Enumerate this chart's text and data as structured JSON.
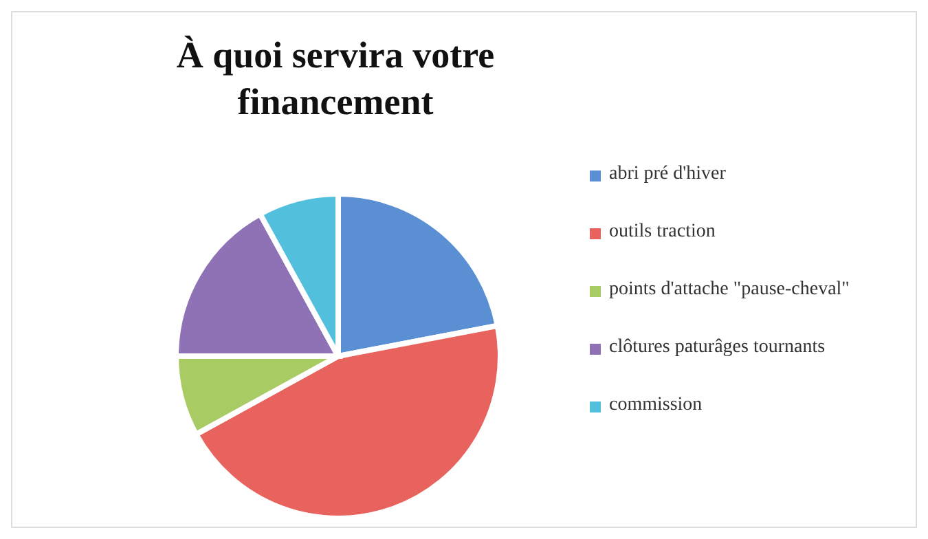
{
  "chart_data": {
    "type": "pie",
    "title": "À quoi servira votre financement",
    "categories": [
      "abri pré d'hiver",
      "outils traction",
      "points d'attache \"pause-cheval\"",
      "clôtures paturâges tournants",
      "commission"
    ],
    "values": [
      22,
      45,
      8,
      17,
      8
    ],
    "colors": [
      "#5b8fd4",
      "#e8625e",
      "#a8cc63",
      "#8f71b5",
      "#52c0dc"
    ],
    "legend": "right"
  }
}
